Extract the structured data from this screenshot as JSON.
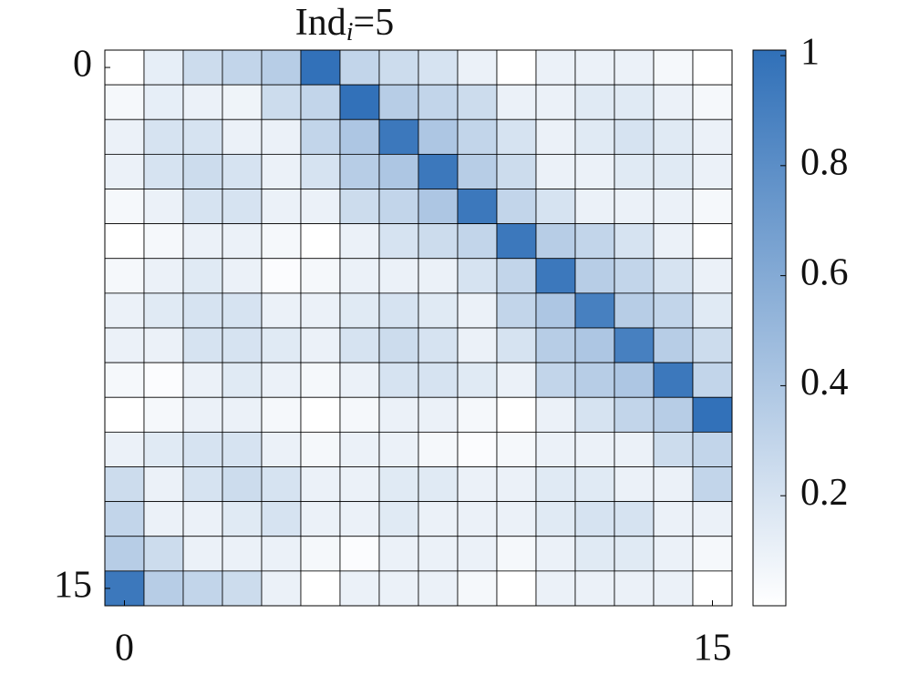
{
  "chart_data": {
    "type": "heatmap",
    "title": "Ind",
    "title_subscript": "i",
    "title_suffix": "=5",
    "xlim": [
      -0.5,
      15.5
    ],
    "ylim": [
      -0.5,
      15.5
    ],
    "xticks": [
      0,
      15
    ],
    "yticks": [
      0,
      15
    ],
    "clim": [
      0,
      1.01
    ],
    "cticks": [
      0.2,
      0.4,
      0.6,
      0.8,
      1
    ],
    "colormap": [
      "#ffffff",
      "#3070b8"
    ],
    "z": [
      [
        0.0,
        0.12,
        0.25,
        0.3,
        0.35,
        1,
        0.3,
        0.25,
        0.2,
        0.1,
        0,
        0.1,
        0.1,
        0.1,
        0.05,
        0
      ],
      [
        0.05,
        0.12,
        0.1,
        0.08,
        0.25,
        0.3,
        1,
        0.35,
        0.3,
        0.25,
        0.1,
        0.1,
        0.15,
        0.15,
        0.1,
        0.05
      ],
      [
        0.1,
        0.2,
        0.2,
        0.1,
        0.1,
        0.3,
        0.4,
        0.95,
        0.4,
        0.3,
        0.2,
        0.1,
        0.15,
        0.2,
        0.15,
        0.1
      ],
      [
        0.1,
        0.2,
        0.25,
        0.2,
        0.1,
        0.2,
        0.35,
        0.4,
        0.95,
        0.35,
        0.25,
        0.1,
        0.1,
        0.15,
        0.15,
        0.1
      ],
      [
        0.05,
        0.1,
        0.2,
        0.2,
        0.1,
        0.1,
        0.25,
        0.3,
        0.4,
        0.95,
        0.3,
        0.2,
        0.1,
        0.1,
        0.1,
        0.05
      ],
      [
        0,
        0.05,
        0.1,
        0.1,
        0.05,
        0,
        0.1,
        0.2,
        0.25,
        0.3,
        0.95,
        0.35,
        0.3,
        0.2,
        0.1,
        0
      ],
      [
        0.05,
        0.1,
        0.15,
        0.1,
        0.02,
        0.05,
        0.1,
        0.1,
        0.1,
        0.2,
        0.3,
        0.95,
        0.35,
        0.3,
        0.2,
        0.1
      ],
      [
        0.1,
        0.15,
        0.2,
        0.2,
        0.1,
        0.1,
        0.15,
        0.2,
        0.15,
        0.1,
        0.3,
        0.4,
        0.9,
        0.35,
        0.3,
        0.15
      ],
      [
        0.1,
        0.1,
        0.2,
        0.2,
        0.15,
        0.1,
        0.2,
        0.25,
        0.2,
        0.1,
        0.2,
        0.35,
        0.4,
        0.9,
        0.35,
        0.25
      ],
      [
        0.05,
        0.02,
        0.1,
        0.15,
        0.1,
        0.05,
        0.1,
        0.2,
        0.2,
        0.15,
        0.1,
        0.3,
        0.35,
        0.4,
        0.95,
        0.3
      ],
      [
        0,
        0.05,
        0.1,
        0.1,
        0.05,
        0,
        0.05,
        0.1,
        0.1,
        0.05,
        0,
        0.1,
        0.2,
        0.3,
        0.35,
        1
      ],
      [
        0.1,
        0.15,
        0.2,
        0.2,
        0.1,
        0.05,
        0.1,
        0.1,
        0.05,
        0.02,
        0.05,
        0.1,
        0.1,
        0.1,
        0.25,
        0.3
      ],
      [
        0.25,
        0.1,
        0.2,
        0.25,
        0.2,
        0.1,
        0.1,
        0.15,
        0.15,
        0.1,
        0.1,
        0.15,
        0.15,
        0.1,
        0.1,
        0.3
      ],
      [
        0.3,
        0.1,
        0.1,
        0.15,
        0.2,
        0.1,
        0.1,
        0.15,
        0.1,
        0.1,
        0.1,
        0.15,
        0.2,
        0.2,
        0.1,
        0.1
      ],
      [
        0.35,
        0.25,
        0.1,
        0.1,
        0.1,
        0.05,
        0.02,
        0.1,
        0.1,
        0.1,
        0.05,
        0.1,
        0.15,
        0.15,
        0.1,
        0.05
      ],
      [
        0.95,
        0.35,
        0.3,
        0.25,
        0.1,
        0,
        0.1,
        0.1,
        0.1,
        0.05,
        0,
        0.1,
        0.1,
        0.1,
        0.1,
        0
      ]
    ]
  }
}
